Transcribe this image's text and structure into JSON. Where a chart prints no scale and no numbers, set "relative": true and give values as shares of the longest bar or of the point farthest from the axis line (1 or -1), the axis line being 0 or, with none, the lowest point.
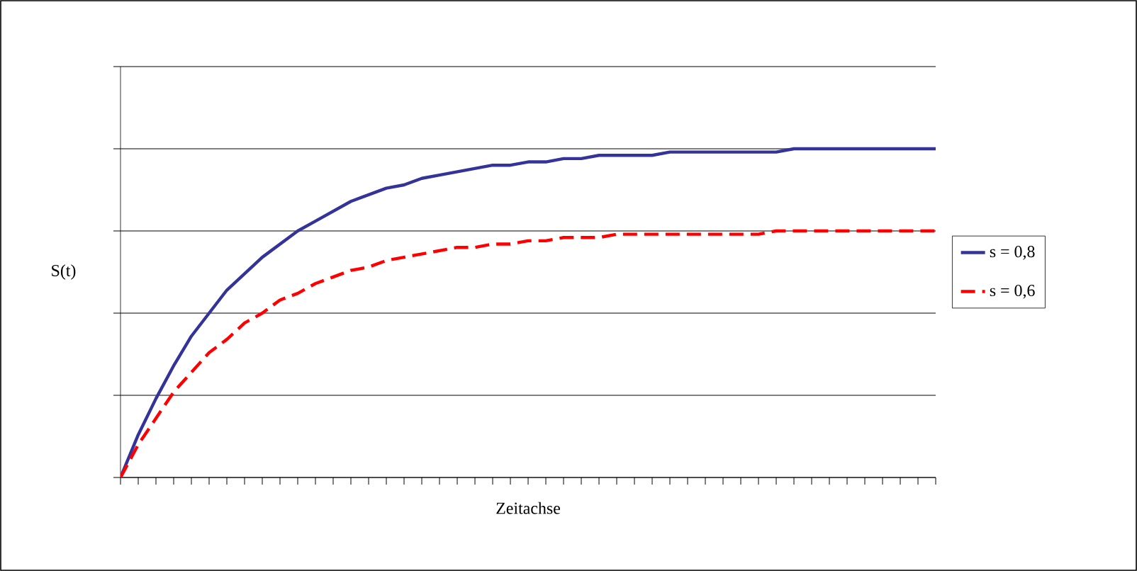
{
  "chart_data": {
    "type": "line",
    "relative": true,
    "xlabel": "Zeitachse",
    "ylabel": "S(t)",
    "grid": "y",
    "legend": "right",
    "marker": "none",
    "categories": [
      null,
      null,
      null,
      null,
      null,
      null,
      null,
      null,
      null,
      null,
      null,
      null,
      null,
      null,
      null,
      null,
      null,
      null,
      null,
      null,
      null,
      null,
      null,
      null,
      null,
      null,
      null,
      null,
      null,
      null,
      null,
      null,
      null,
      null,
      null,
      null,
      null,
      null,
      null,
      null,
      null,
      null,
      null,
      null,
      null,
      null,
      null
    ],
    "series": [
      {
        "name": "s = 0,8",
        "color": "#333399",
        "line_style": "solid",
        "values": [
          0,
          0.13,
          0.24,
          0.34,
          0.43,
          0.5,
          0.57,
          0.62,
          0.67,
          0.71,
          0.75,
          0.78,
          0.81,
          0.84,
          0.86,
          0.88,
          0.89,
          0.91,
          0.92,
          0.93,
          0.94,
          0.95,
          0.95,
          0.96,
          0.96,
          0.97,
          0.97,
          0.98,
          0.98,
          0.98,
          0.98,
          0.99,
          0.99,
          0.99,
          0.99,
          0.99,
          0.99,
          0.99,
          1,
          1,
          1,
          1,
          1,
          1,
          1,
          1,
          1
        ]
      },
      {
        "name": "s = 0,6",
        "color": "#ff0000",
        "line_style": "dashed",
        "values": [
          0,
          0.1,
          0.18,
          0.26,
          0.32,
          0.38,
          0.42,
          0.47,
          0.5,
          0.54,
          0.56,
          0.59,
          0.61,
          0.63,
          0.64,
          0.66,
          0.67,
          0.68,
          0.69,
          0.7,
          0.7,
          0.71,
          0.71,
          0.72,
          0.72,
          0.73,
          0.73,
          0.73,
          0.74,
          0.74,
          0.74,
          0.74,
          0.74,
          0.74,
          0.74,
          0.74,
          0.74,
          0.75,
          0.75,
          0.75,
          0.75,
          0.75,
          0.75,
          0.75,
          0.75,
          0.75,
          0.75
        ]
      }
    ]
  }
}
